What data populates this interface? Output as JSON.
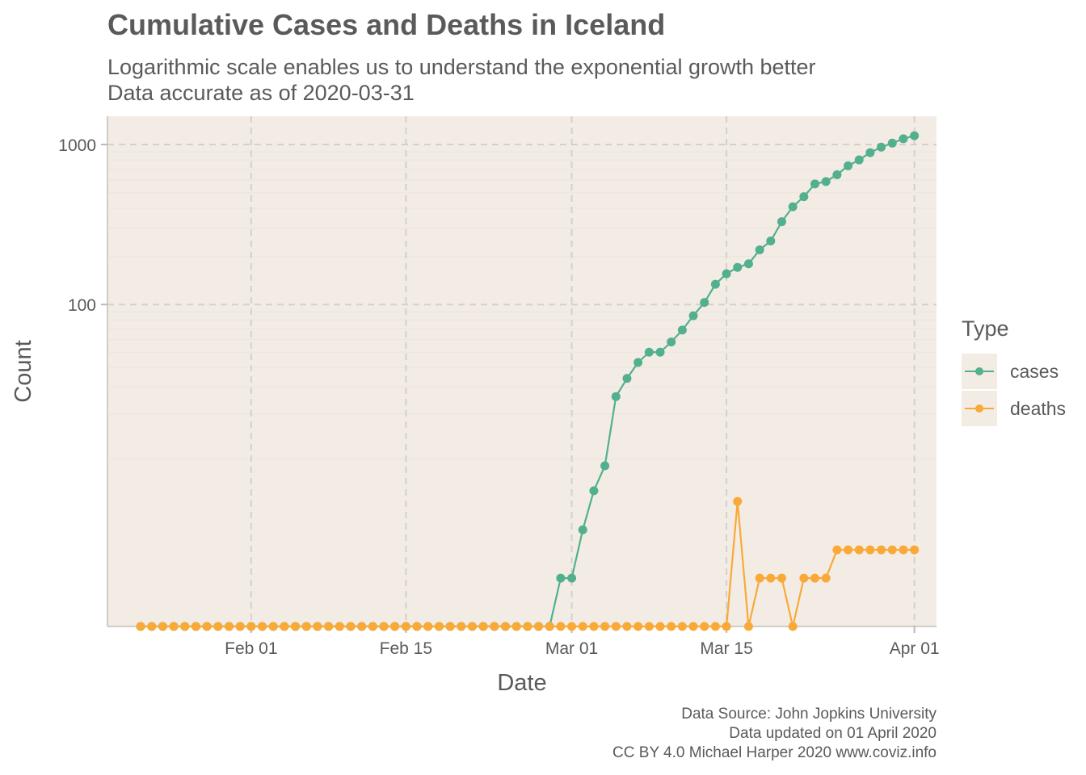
{
  "title": "Cumulative Cases and Deaths in Iceland",
  "subtitle": [
    "Logarithmic scale enables us to understand the exponential growth better",
    "Data accurate as of 2020-03-31"
  ],
  "caption": [
    "Data Source: John Jopkins University",
    "Data updated on 01 April 2020",
    "CC BY 4.0 Michael Harper 2020 www.coviz.info"
  ],
  "legend": {
    "title": "Type",
    "items": [
      {
        "label": "cases",
        "color": "#52b08e"
      },
      {
        "label": "deaths",
        "color": "#f9a937"
      }
    ]
  },
  "colors": {
    "panel_background": "#f3ece5",
    "major_grid": "#d3d0cc",
    "minor_grid": "#e9e4de",
    "axis_text": "#5a5a5a"
  },
  "chart_data": {
    "type": "line",
    "x_type": "date",
    "xlabel": "Date",
    "ylabel": "Count",
    "y_scale": "log10",
    "ylim": [
      1,
      1500
    ],
    "xlim": [
      "2020-01-19",
      "2020-04-03"
    ],
    "x_ticks": [
      {
        "date": "2020-02-01",
        "label": "Feb 01"
      },
      {
        "date": "2020-02-15",
        "label": "Feb 15"
      },
      {
        "date": "2020-03-01",
        "label": "Mar 01"
      },
      {
        "date": "2020-03-15",
        "label": "Mar 15"
      },
      {
        "date": "2020-04-01",
        "label": "Apr 01"
      }
    ],
    "y_ticks": [
      {
        "value": 100,
        "label": "100"
      },
      {
        "value": 1000,
        "label": "1000"
      }
    ],
    "grid": true,
    "legend_position": "right",
    "x_start": "2020-01-22",
    "x_end": "2020-03-31",
    "series": [
      {
        "name": "cases",
        "color": "#52b08e",
        "values": [
          0,
          0,
          0,
          0,
          0,
          0,
          0,
          0,
          0,
          0,
          0,
          0,
          0,
          0,
          0,
          0,
          0,
          0,
          0,
          0,
          0,
          0,
          0,
          0,
          0,
          0,
          0,
          0,
          0,
          0,
          0,
          0,
          0,
          0,
          0,
          0,
          0,
          0,
          1,
          1,
          3,
          6,
          9,
          26,
          34,
          43,
          50,
          50,
          58,
          69,
          85,
          103,
          134,
          156,
          171,
          180,
          220,
          250,
          330,
          409,
          473,
          568,
          588,
          648,
          737,
          802,
          890,
          963,
          1020,
          1086,
          1135
        ]
      },
      {
        "name": "deaths",
        "color": "#f9a937",
        "values": [
          0,
          0,
          0,
          0,
          0,
          0,
          0,
          0,
          0,
          0,
          0,
          0,
          0,
          0,
          0,
          0,
          0,
          0,
          0,
          0,
          0,
          0,
          0,
          0,
          0,
          0,
          0,
          0,
          0,
          0,
          0,
          0,
          0,
          0,
          0,
          0,
          0,
          0,
          0,
          0,
          0,
          0,
          0,
          0,
          0,
          0,
          0,
          0,
          0,
          0,
          0,
          0,
          0,
          0,
          5,
          0,
          1,
          1,
          1,
          0,
          1,
          1,
          1,
          2,
          2,
          2,
          2,
          2,
          2,
          2,
          2
        ]
      }
    ]
  }
}
